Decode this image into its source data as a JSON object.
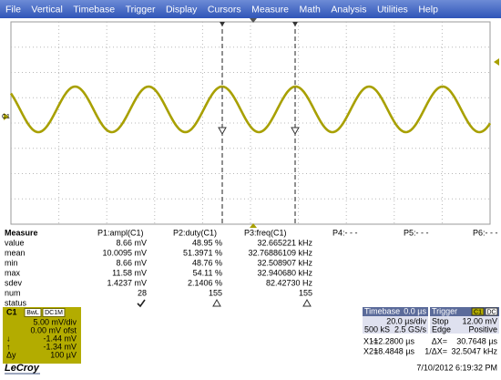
{
  "menu": [
    "File",
    "Vertical",
    "Timebase",
    "Trigger",
    "Display",
    "Cursors",
    "Measure",
    "Math",
    "Analysis",
    "Utilities",
    "Help"
  ],
  "scope": {
    "channel_marker": "C1"
  },
  "measure": {
    "title": "Measure",
    "row_labels": [
      "value",
      "mean",
      "min",
      "max",
      "sdev",
      "num",
      "status"
    ],
    "columns": [
      {
        "header": "P1:ampl(C1)",
        "cells": [
          "8.66 mV",
          "10.0095 mV",
          "8.66 mV",
          "11.58 mV",
          "1.4237 mV",
          "28"
        ],
        "status": "ok"
      },
      {
        "header": "P2:duty(C1)",
        "cells": [
          "48.95 %",
          "51.3971 %",
          "48.76 %",
          "54.11 %",
          "2.1406 %",
          "155"
        ],
        "status": "warn"
      },
      {
        "header": "P3:freq(C1)",
        "cells": [
          "32.665221 kHz",
          "32.76886109 kHz",
          "32.508907 kHz",
          "32.940680 kHz",
          "82.42730 Hz",
          "155"
        ],
        "status": "warn"
      },
      {
        "header": "P4:- - -"
      },
      {
        "header": "P5:- - -"
      },
      {
        "header": "P6:- - -"
      }
    ]
  },
  "channel": {
    "name": "C1",
    "tags": [
      "BwL",
      "DC1M"
    ],
    "lines": [
      {
        "value": "5.00 mV/div"
      },
      {
        "value": "0.00 mV ofst"
      },
      {
        "label": "↓",
        "value": "-1.44 mV"
      },
      {
        "label": "↑",
        "value": "-1.34 mV"
      },
      {
        "label": "Δy",
        "value": "100 µV"
      }
    ]
  },
  "timebase": {
    "title": "Timebase",
    "delay": "0.0 µs",
    "per_div": "20.0 µs/div",
    "samples": "500 kS",
    "rate": "2.5 GS/s"
  },
  "trigger": {
    "title": "Trigger",
    "tags": [
      "C1",
      "DC"
    ],
    "lines": [
      [
        "Stop",
        "12.00 mV"
      ],
      [
        "Edge",
        "Positive"
      ]
    ]
  },
  "cursors": [
    {
      "label": "X1=",
      "value": "-12.2800 µs",
      "delta_label": "ΔX=",
      "delta_value": "30.7648 µs"
    },
    {
      "label": "X2=",
      "value": "18.4848 µs",
      "delta_label": "1/ΔX=",
      "delta_value": "32.5047 kHz"
    }
  ],
  "brand": "LeCroy",
  "timestamp": "7/10/2012 6:19:32 PM"
}
